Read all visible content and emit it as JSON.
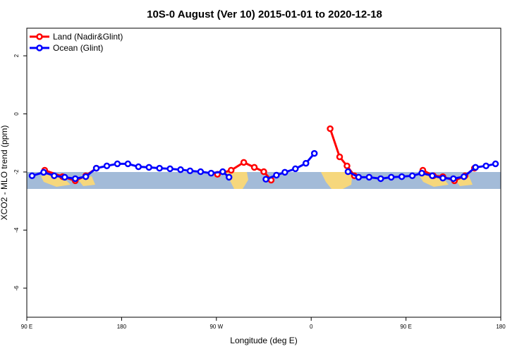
{
  "chart_data": {
    "type": "line",
    "title": "10S-0 August (Ver 10)   2015-01-01 to 2020-12-18",
    "xlabel": "Longitude (deg E)",
    "ylabel": "XCO2 - MLO trend (ppm)",
    "xlim": [
      90,
      540
    ],
    "xticks": [
      {
        "value": 90,
        "label": "90 E"
      },
      {
        "value": 180,
        "label": "180"
      },
      {
        "value": 270,
        "label": "90 W"
      },
      {
        "value": 360,
        "label": "0"
      },
      {
        "value": 450,
        "label": "90 E"
      },
      {
        "value": 540,
        "label": "180"
      }
    ],
    "ylim": [
      -7,
      2.95
    ],
    "yticks": [
      2,
      0,
      -2,
      -4,
      -6
    ],
    "legend": "top-left",
    "series": [
      {
        "name": "Land (Nadir&Glint)",
        "color": "#ff0000",
        "x": [
          107,
          124,
          136,
          146,
          156,
          210,
          271,
          284,
          296,
          306,
          315,
          322,
          350,
          378,
          387,
          394,
          401,
          430,
          466,
          476,
          485,
          496,
          506,
          515
        ],
        "values": [
          -1.94,
          -2.16,
          -2.3,
          -2.13,
          -1.87,
          null,
          -2.08,
          -1.94,
          -1.67,
          -1.84,
          -1.99,
          -2.28,
          null,
          -0.51,
          -1.48,
          -1.79,
          -2.13,
          null,
          -1.94,
          -2.13,
          -2.16,
          -2.3,
          -2.13,
          -1.87
        ]
      },
      {
        "name": "Ocean (Glint)",
        "color": "#0000ff",
        "x": [
          95,
          106,
          116,
          126,
          136,
          146,
          156,
          166,
          176,
          186,
          196,
          206,
          216,
          226,
          236,
          245,
          255,
          265,
          276,
          282,
          300,
          317,
          327,
          335,
          345,
          355,
          363,
          380,
          395,
          405,
          415,
          426,
          436,
          446,
          456,
          465,
          475,
          485,
          495,
          505,
          516,
          526,
          535
        ],
        "values": [
          -2.13,
          -2.01,
          -2.13,
          -2.18,
          -2.23,
          -2.16,
          -1.87,
          -1.79,
          -1.72,
          -1.72,
          -1.82,
          -1.84,
          -1.87,
          -1.89,
          -1.92,
          -1.96,
          -1.99,
          -2.04,
          -1.99,
          -2.18,
          null,
          -2.25,
          -2.11,
          -2.01,
          -1.89,
          -1.7,
          -1.36,
          null,
          -1.99,
          -2.18,
          -2.18,
          -2.23,
          -2.18,
          -2.16,
          -2.13,
          -2.04,
          -2.13,
          -2.21,
          -2.23,
          -2.16,
          -1.84,
          -1.79,
          -1.72
        ]
      }
    ]
  }
}
